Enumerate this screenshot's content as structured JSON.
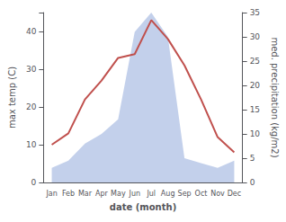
{
  "chart_data": {
    "type": "line",
    "categories": [
      "Jan",
      "Feb",
      "Mar",
      "Apr",
      "May",
      "Jun",
      "Jul",
      "Aug",
      "Sep",
      "Oct",
      "Nov",
      "Dec"
    ],
    "series": [
      {
        "type": "area",
        "color": "#b8c8e8",
        "axis": "y2",
        "values": [
          3,
          4.5,
          8,
          10,
          13,
          31,
          35,
          30,
          5,
          4,
          3,
          4.5
        ]
      },
      {
        "type": "line",
        "color": "#c0504d",
        "values": [
          10,
          13,
          22,
          27,
          33,
          34,
          43,
          38,
          31,
          22,
          12,
          8
        ]
      }
    ],
    "xlabel": "date (month)",
    "ylabel": "max temp (C)",
    "y2label": "med. precipitation (kg/m2)",
    "ylim": [
      0,
      45
    ],
    "yticks": [
      0,
      10,
      20,
      30,
      40
    ],
    "y2lim": [
      0,
      35
    ],
    "y2ticks": [
      0,
      5,
      10,
      15,
      20,
      25,
      30,
      35
    ],
    "grid": false
  }
}
